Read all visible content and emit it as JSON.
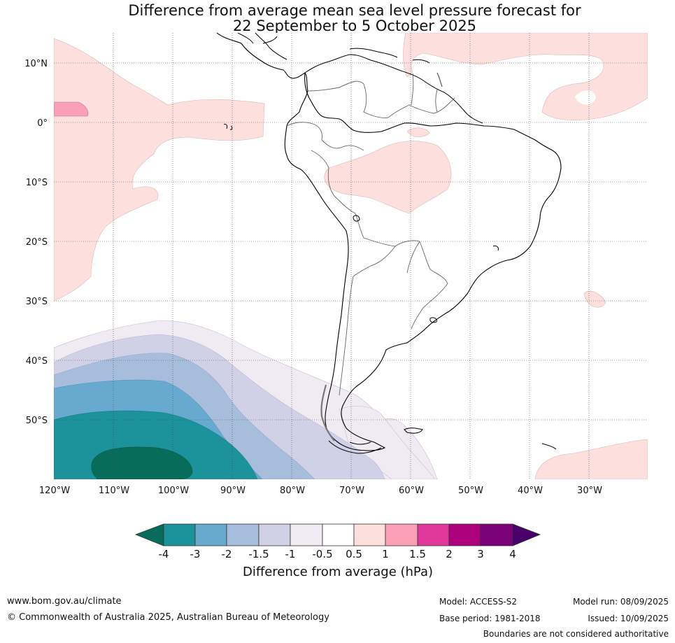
{
  "title": {
    "line1": "Difference from average mean sea level pressure forecast for",
    "line2": "22 September to 5 October 2025"
  },
  "map": {
    "lon_ticks": [
      "120°W",
      "110°W",
      "100°W",
      "90°W",
      "80°W",
      "70°W",
      "60°W",
      "50°W",
      "40°W",
      "30°W"
    ],
    "lat_ticks": [
      "10°N",
      "0°",
      "10°S",
      "20°S",
      "30°S",
      "40°S",
      "50°S"
    ]
  },
  "colorbar": {
    "label": "Difference from average (hPa)",
    "ticks": [
      "-4",
      "-3",
      "-2",
      "-1.5",
      "-1",
      "-0.5",
      "0.5",
      "1",
      "1.5",
      "2",
      "3",
      "4"
    ],
    "colors": {
      "lt_-4": "#076d5a",
      "-4_-3": "#1c929a",
      "-3_-2": "#67a9cf",
      "-2_-1.5": "#a6bddb",
      "-1.5_-1": "#d0d1e6",
      "-1_-0.5": "#f0eaf2",
      "-0.5_0.5": "#ffffff",
      "0.5_1": "#fde0dd",
      "1_1.5": "#fa9fb5",
      "1.5_2": "#e0379a",
      "2_3": "#ae017e",
      "3_4": "#7a0177",
      "gt_4": "#49006a"
    }
  },
  "footer": {
    "website": "www.bom.gov.au/climate",
    "copyright": "© Commonwealth of Australia 2025, Australian Bureau of Meteorology",
    "model": "Model: ACCESS-S2",
    "base_period": "Base period: 1981-2018",
    "model_run": "Model run: 08/09/2025",
    "issued": "Issued: 10/09/2025",
    "disclaimer": "Boundaries are not considered authoritative"
  }
}
